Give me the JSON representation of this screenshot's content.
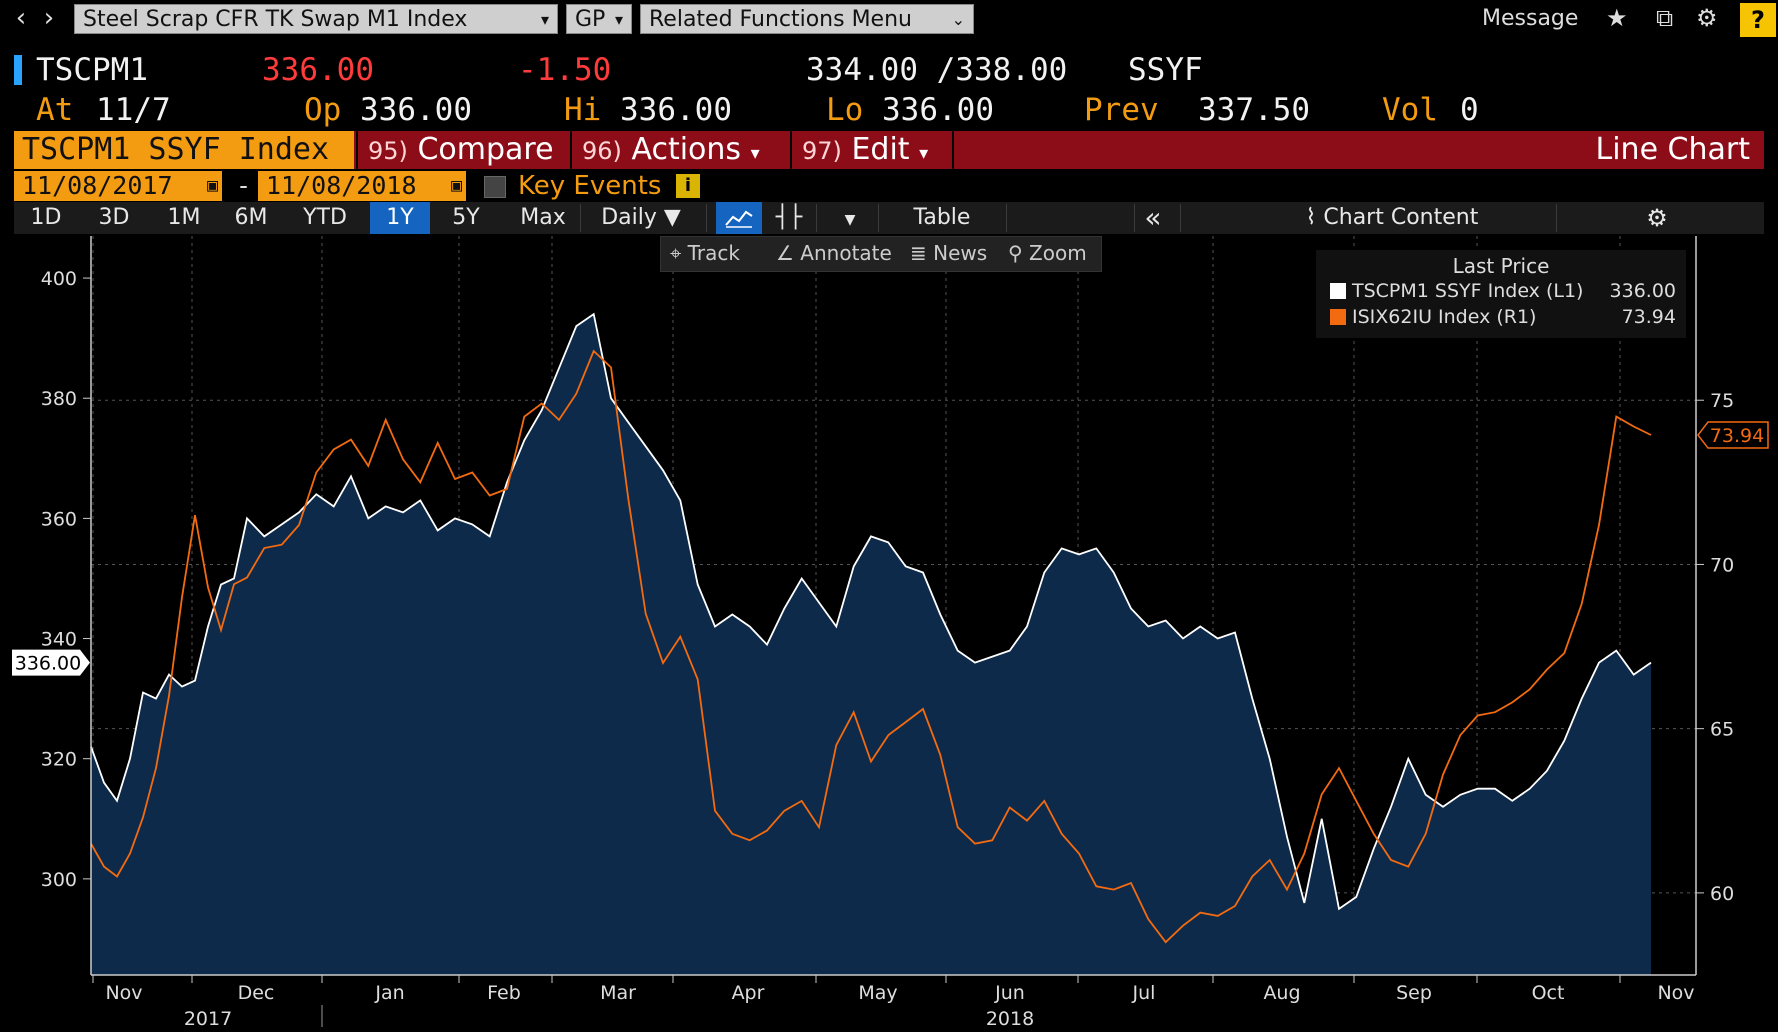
{
  "topbar": {
    "security_dropdown": "Steel Scrap CFR TK Swap M1 Index",
    "source_dropdown": "GP",
    "related_dropdown": "Related Functions  Menu",
    "message": "Message",
    "help": "?"
  },
  "quote": {
    "ticker": "TSCPM1",
    "last": "336.00",
    "change": "-1.50",
    "bid_ask": "334.00 /338.00",
    "source": "SSYF",
    "at_label": "At",
    "at_value": "11/7",
    "op_label": "Op",
    "op_value": "336.00",
    "hi_label": "Hi",
    "hi_value": "336.00",
    "lo_label": "Lo",
    "lo_value": "336.00",
    "prev_label": "Prev",
    "prev_value": "337.50",
    "vol_label": "Vol",
    "vol_value": "0"
  },
  "function_bar": {
    "security_name": "TSCPM1 SSYF Index",
    "compare_num": "95)",
    "compare": "Compare",
    "actions_num": "96)",
    "actions": "Actions",
    "edit_num": "97)",
    "edit": "Edit",
    "chart_type": "Line Chart"
  },
  "dates": {
    "start": "11/08/2017",
    "separator": "-",
    "end": "11/08/2018",
    "key_events": "Key Events"
  },
  "periods": [
    "1D",
    "3D",
    "1M",
    "6M",
    "YTD",
    "1Y",
    "5Y",
    "Max"
  ],
  "selected_period": "1Y",
  "period_bar": {
    "frequency": "Daily",
    "table": "Table",
    "chart_content": "Chart Content"
  },
  "chart_toolbar": {
    "track": "Track",
    "annotate": "Annotate",
    "news": "News",
    "zoom": "Zoom"
  },
  "legend": {
    "title": "Last Price",
    "items": [
      {
        "name": "TSCPM1 SSYF Index  (L1)",
        "value": "336.00",
        "color": "#ffffff"
      },
      {
        "name": "ISIX62IU Index  (R1)",
        "value": "73.94",
        "color": "#f36b10"
      }
    ]
  },
  "chart_data": {
    "type": "line",
    "y_left": {
      "ticks": [
        300,
        320,
        340,
        360,
        380,
        400
      ],
      "range": [
        284,
        407
      ]
    },
    "y_right": {
      "ticks": [
        60,
        65,
        70,
        75
      ],
      "range": [
        57.5,
        80.0
      ]
    },
    "x_months": [
      "Nov",
      "Dec",
      "Jan",
      "Feb",
      "Mar",
      "Apr",
      "May",
      "Jun",
      "Jul",
      "Aug",
      "Sep",
      "Oct",
      "Nov"
    ],
    "x_years": [
      "2017",
      "2018"
    ],
    "last_left_label": "336.00",
    "last_right_label": "73.94",
    "series": [
      {
        "name": "TSCPM1 SSYF Index",
        "axis": "left",
        "color": "#ffffff",
        "fill": "#0e2a4a",
        "x": [
          0,
          3,
          6,
          9,
          12,
          15,
          18,
          21,
          24,
          27,
          30,
          33,
          36,
          40,
          44,
          48,
          52,
          56,
          60,
          64,
          68,
          72,
          76,
          80,
          84,
          88,
          92,
          96,
          100,
          104,
          108,
          112,
          116,
          120,
          124,
          128,
          132,
          136,
          140,
          144,
          148,
          152,
          156,
          160,
          164,
          168,
          172,
          176,
          180,
          184,
          188,
          192,
          196,
          200,
          204,
          208,
          212,
          216,
          220,
          224,
          228,
          232,
          236,
          240,
          244,
          248,
          252,
          256,
          260,
          264,
          268,
          272,
          276,
          280,
          284,
          288,
          292,
          296,
          300,
          304,
          308,
          312,
          316,
          320,
          324,
          328,
          332,
          336,
          340,
          344,
          348,
          352,
          356,
          360
        ],
        "values": [
          322,
          316,
          313,
          320,
          331,
          330,
          334,
          332,
          333,
          342,
          349,
          350,
          360,
          357,
          359,
          361,
          364,
          362,
          367,
          360,
          362,
          361,
          363,
          358,
          360,
          359,
          357,
          366,
          373,
          378,
          385,
          392,
          394,
          380,
          376,
          372,
          368,
          363,
          349,
          342,
          344,
          342,
          339,
          345,
          350,
          346,
          342,
          352,
          357,
          356,
          352,
          351,
          344,
          338,
          336,
          337,
          338,
          342,
          351,
          355,
          354,
          355,
          351,
          345,
          342,
          343,
          340,
          342,
          340,
          341,
          330,
          320,
          307,
          296,
          310,
          295,
          297,
          305,
          312,
          320,
          314,
          312,
          314,
          315,
          315,
          313,
          315,
          318,
          323,
          330,
          336,
          338,
          334,
          336
        ]
      },
      {
        "name": "ISIX62IU Index",
        "axis": "right",
        "color": "#f36b10",
        "x": [
          0,
          3,
          6,
          9,
          12,
          15,
          18,
          21,
          24,
          27,
          30,
          33,
          36,
          40,
          44,
          48,
          52,
          56,
          60,
          64,
          68,
          72,
          76,
          80,
          84,
          88,
          92,
          96,
          100,
          104,
          108,
          112,
          116,
          120,
          124,
          128,
          132,
          136,
          140,
          144,
          148,
          152,
          156,
          160,
          164,
          168,
          172,
          176,
          180,
          184,
          188,
          192,
          196,
          200,
          204,
          208,
          212,
          216,
          220,
          224,
          228,
          232,
          236,
          240,
          244,
          248,
          252,
          256,
          260,
          264,
          268,
          272,
          276,
          280,
          284,
          288,
          292,
          296,
          300,
          304,
          308,
          312,
          316,
          320,
          324,
          328,
          332,
          336,
          340,
          344,
          348,
          352,
          356,
          360
        ],
        "values": [
          61.5,
          60.8,
          60.5,
          61.2,
          62.3,
          63.8,
          66.0,
          69.0,
          71.5,
          69.3,
          68.0,
          69.4,
          69.6,
          70.5,
          70.6,
          71.2,
          72.8,
          73.5,
          73.8,
          73.0,
          74.4,
          73.2,
          72.5,
          73.7,
          72.6,
          72.8,
          72.1,
          72.3,
          74.5,
          74.9,
          74.4,
          75.2,
          76.5,
          76.0,
          72.0,
          68.5,
          67.0,
          67.8,
          66.5,
          62.5,
          61.8,
          61.6,
          61.9,
          62.5,
          62.8,
          62.0,
          64.5,
          65.5,
          64.0,
          64.8,
          65.2,
          65.6,
          64.2,
          62.0,
          61.5,
          61.6,
          62.6,
          62.2,
          62.8,
          61.8,
          61.2,
          60.2,
          60.1,
          60.3,
          59.2,
          58.5,
          59.0,
          59.4,
          59.3,
          59.6,
          60.5,
          61.0,
          60.1,
          61.2,
          63.0,
          63.8,
          62.8,
          61.8,
          61.0,
          60.8,
          61.8,
          63.6,
          64.8,
          65.4,
          65.5,
          65.8,
          66.2,
          66.8,
          67.3,
          68.8,
          71.2,
          74.5,
          74.2,
          73.94
        ]
      }
    ]
  }
}
